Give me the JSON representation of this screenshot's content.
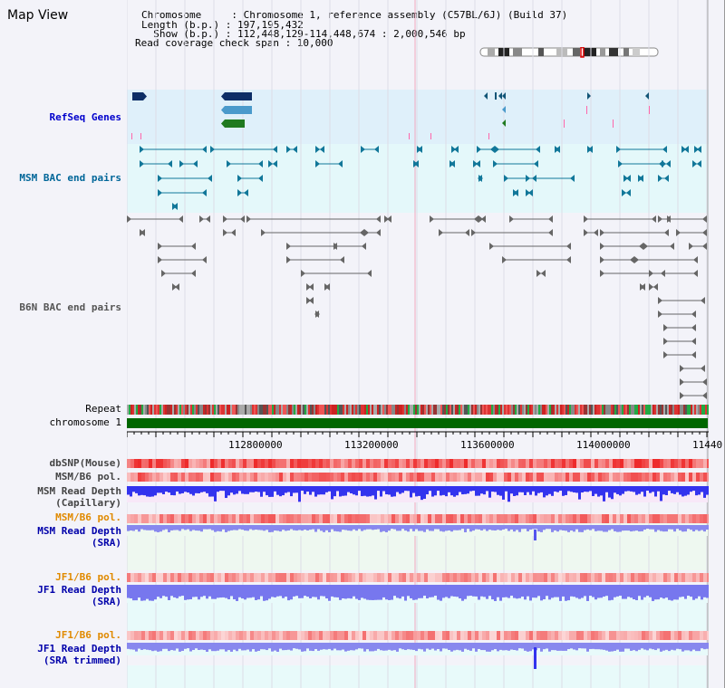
{
  "title": "Map View",
  "header": {
    "line1": "Chromosome     : Chromosome 1, reference assembly (C57BL/6J) (Build 37)",
    "line2": "Length (b.p.) : 197,195,432",
    "line3": "  Show (b.p.) : 112,448,129-114,448,674 : 2,000,546 bp",
    "line4": "Read coverage check span : 10,000"
  },
  "tracks": {
    "refseq": "RefSeq Genes",
    "msm_bac": "MSM BAC end pairs",
    "b6n_bac": "B6N BAC end pairs",
    "repeat": "Repeat",
    "chromosome": "chromosome 1",
    "dbsnp": "dbSNP(Mouse)",
    "msm_b6_pol": "MSM/B6 pol.",
    "msm_depth_cap_1": "MSM Read Depth",
    "msm_depth_cap_2": "(Capillary)",
    "msm_b6_pol2": "MSM/B6 pol.",
    "msm_depth_sra_1": "MSM Read Depth",
    "msm_depth_sra_2": "(SRA)",
    "jf1_b6_pol": "JF1/B6 pol.",
    "jf1_depth_sra_1": "JF1 Read Depth",
    "jf1_depth_sra_2": "(SRA)",
    "jf1_b6_pol2": "JF1/B6 pol.",
    "jf1_depth_trim_1": "JF1 Read Depth",
    "jf1_depth_trim_2": "(SRA trimmed)"
  },
  "axis": {
    "ticks": [
      "112800000",
      "113200000",
      "113600000",
      "114000000",
      "11440"
    ]
  },
  "colors": {
    "refseq_bg": "#dff0fa",
    "msm_bg": "#e4f8fa",
    "refseq_label": "#0000cc",
    "msm_label": "#006699",
    "b6n_label": "#555555",
    "pol_label": "#e08a00",
    "depth_label": "#0000aa",
    "chromosome_bar": "#006600"
  }
}
